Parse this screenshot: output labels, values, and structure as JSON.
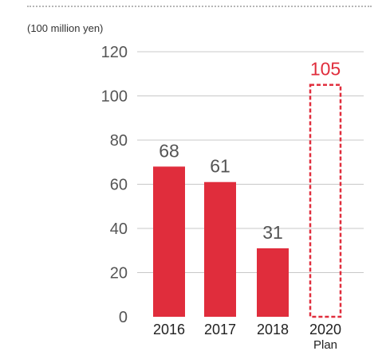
{
  "unit_label": "(100 million yen)",
  "colors": {
    "bar": "#e02d3c",
    "plan_outline": "#e02d3c",
    "plan_value_text": "#e02d3c",
    "value_text": "#555555",
    "grid": "#c8c8c8"
  },
  "chart_data": {
    "type": "bar",
    "title": "",
    "xlabel": "",
    "ylabel": "(100 million yen)",
    "ylim": [
      0,
      120
    ],
    "yticks": [
      0,
      20,
      40,
      60,
      80,
      100,
      120
    ],
    "grid": true,
    "categories": [
      "2016",
      "2017",
      "2018",
      "2020"
    ],
    "category_sublabels": [
      "",
      "",
      "",
      "Plan"
    ],
    "values": [
      68,
      61,
      31,
      105
    ],
    "data_labels": [
      "68",
      "61",
      "31",
      "105"
    ],
    "bar_styles": [
      "solid",
      "solid",
      "solid",
      "dashed-outline"
    ]
  }
}
